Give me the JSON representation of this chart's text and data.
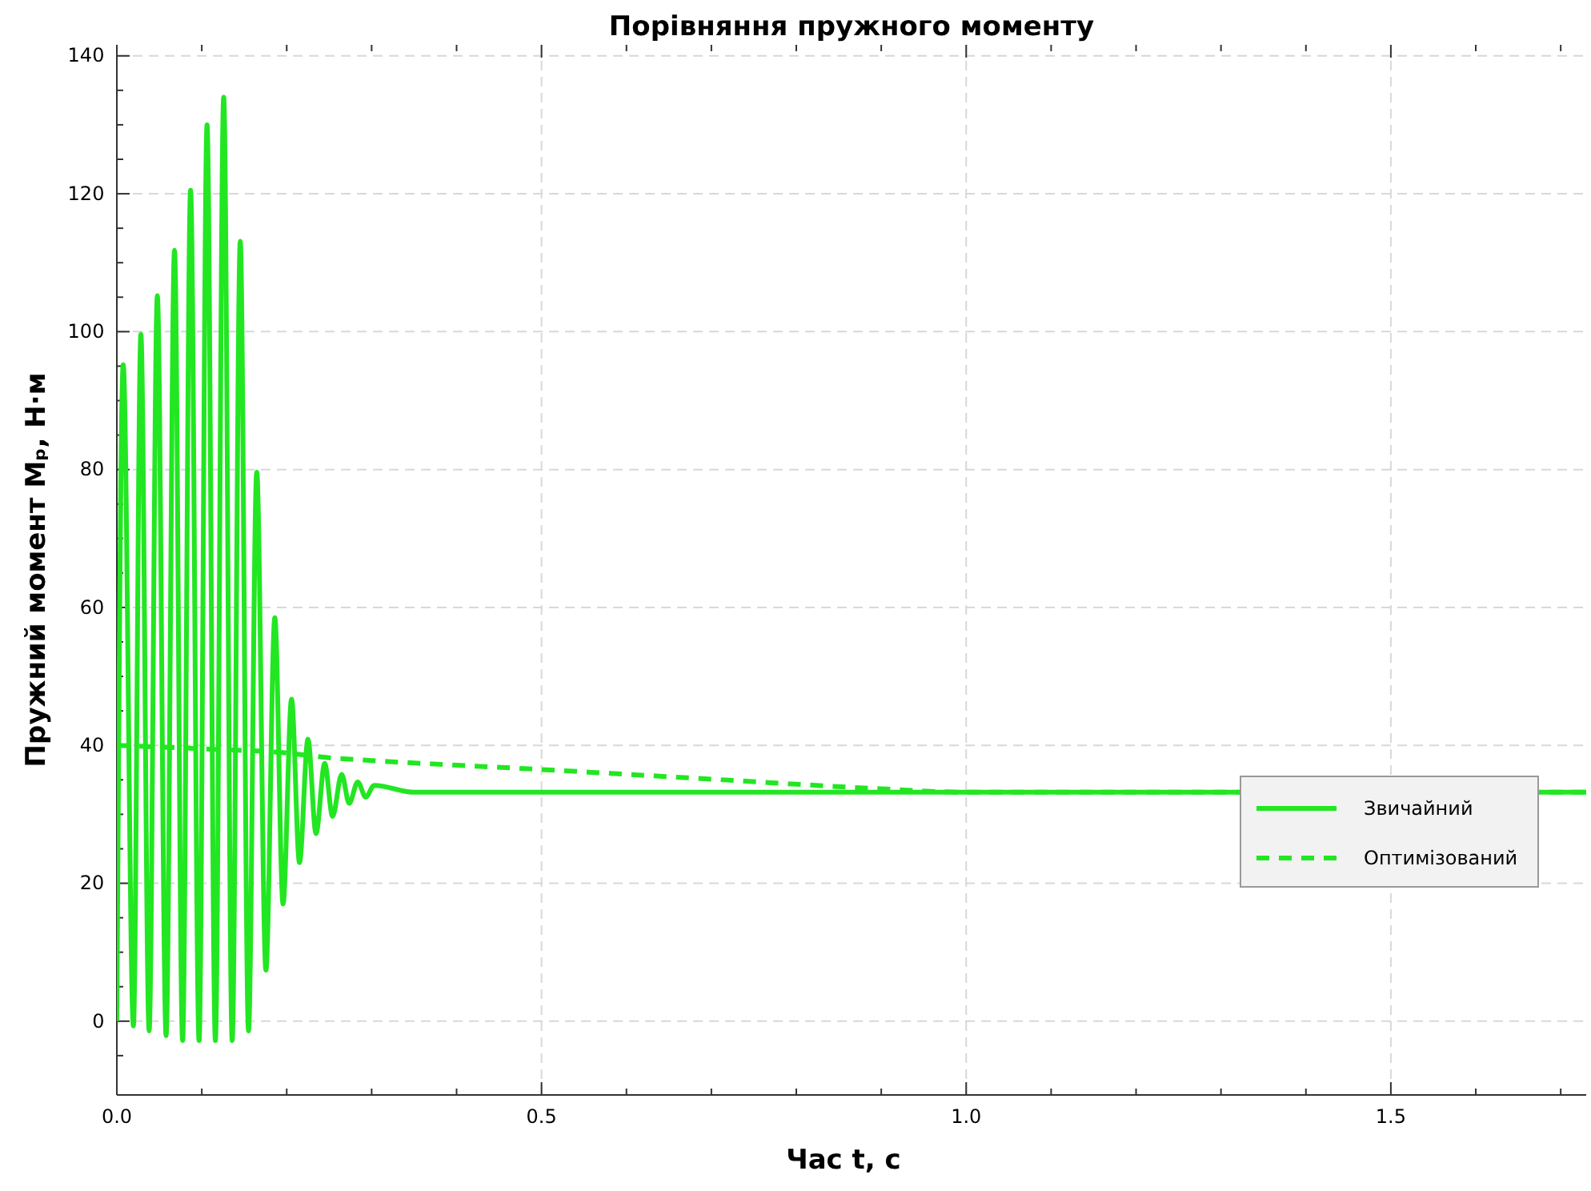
{
  "chart_data": {
    "type": "line",
    "title": "Порівняння пружного моменту",
    "xlabel": "Час t, с",
    "ylabel": "Пружний момент Mₚ, Н·м",
    "xlim": [
      0,
      1.73
    ],
    "ylim": [
      -10.7,
      141.6
    ],
    "xticks": [
      {
        "value": 0,
        "label": "0.0"
      },
      {
        "value": 0.1,
        "label": null
      },
      {
        "value": 0.2,
        "label": null
      },
      {
        "value": 0.3,
        "label": null
      },
      {
        "value": 0.4,
        "label": null
      },
      {
        "value": 0.5,
        "label": "0.5"
      },
      {
        "value": 0.6,
        "label": null
      },
      {
        "value": 0.7,
        "label": null
      },
      {
        "value": 0.8,
        "label": null
      },
      {
        "value": 0.9,
        "label": null
      },
      {
        "value": 1.0,
        "label": "1.0"
      },
      {
        "value": 1.1,
        "label": null
      },
      {
        "value": 1.2,
        "label": null
      },
      {
        "value": 1.3,
        "label": null
      },
      {
        "value": 1.4,
        "label": null
      },
      {
        "value": 1.5,
        "label": "1.5"
      },
      {
        "value": 1.6,
        "label": null
      },
      {
        "value": 1.7,
        "label": null
      }
    ],
    "yticks": [
      {
        "value": -5,
        "label": null
      },
      0,
      {
        "value": 5,
        "label": null
      },
      {
        "value": 10,
        "label": null
      },
      {
        "value": 15,
        "label": null
      },
      20,
      {
        "value": 25,
        "label": null
      },
      {
        "value": 30,
        "label": null
      },
      {
        "value": 35,
        "label": null
      },
      40,
      {
        "value": 45,
        "label": null
      },
      {
        "value": 50,
        "label": null
      },
      {
        "value": 55,
        "label": null
      },
      60,
      {
        "value": 65,
        "label": null
      },
      {
        "value": 70,
        "label": null
      },
      {
        "value": 75,
        "label": null
      },
      80,
      {
        "value": 85,
        "label": null
      },
      {
        "value": 90,
        "label": null
      },
      {
        "value": 95,
        "label": null
      },
      100,
      {
        "value": 105,
        "label": null
      },
      {
        "value": 110,
        "label": null
      },
      {
        "value": 115,
        "label": null
      },
      120,
      {
        "value": 125,
        "label": null
      },
      {
        "value": 130,
        "label": null
      },
      {
        "value": 135,
        "label": null
      },
      140
    ],
    "grid": true,
    "legend": "right",
    "series": [
      {
        "name": "Звичайний",
        "color": "#22e622",
        "line_style": "solid",
        "x": [
          0,
          0.0075,
          0.0195,
          0.0283,
          0.038,
          0.0477,
          0.058,
          0.0679,
          0.0774,
          0.0868,
          0.0968,
          0.1062,
          0.116,
          0.1258,
          0.1358,
          0.1453,
          0.155,
          0.1647,
          0.1755,
          0.186,
          0.1957,
          0.2057,
          0.215,
          0.225,
          0.2345,
          0.2447,
          0.254,
          0.2647,
          0.2736,
          0.2836,
          0.293,
          0.303,
          0.35,
          0.5,
          1.0,
          1.73
        ],
        "values": [
          0,
          95.2,
          -0.7,
          99.6,
          -1.4,
          105.2,
          -2.1,
          111.8,
          -2.8,
          120.5,
          -2.8,
          130,
          -2.8,
          134,
          -2.8,
          113.1,
          -1.4,
          79.6,
          7.4,
          58.5,
          17,
          46.7,
          23,
          40.9,
          27.2,
          37.4,
          29.7,
          35.8,
          31.6,
          34.7,
          32.5,
          34.2,
          33.2,
          33.2,
          33.2,
          33.2
        ]
      },
      {
        "name": "Оптимізований",
        "color": "#22e622",
        "line_style": "dashed",
        "x": [
          0,
          0.1,
          0.2,
          0.25,
          0.3,
          0.5,
          0.7,
          0.9,
          1.0,
          1.73
        ],
        "values": [
          40,
          39.5,
          38.9,
          38.2,
          37.8,
          36.5,
          35.1,
          33.7,
          33.2,
          33.2
        ]
      }
    ]
  }
}
